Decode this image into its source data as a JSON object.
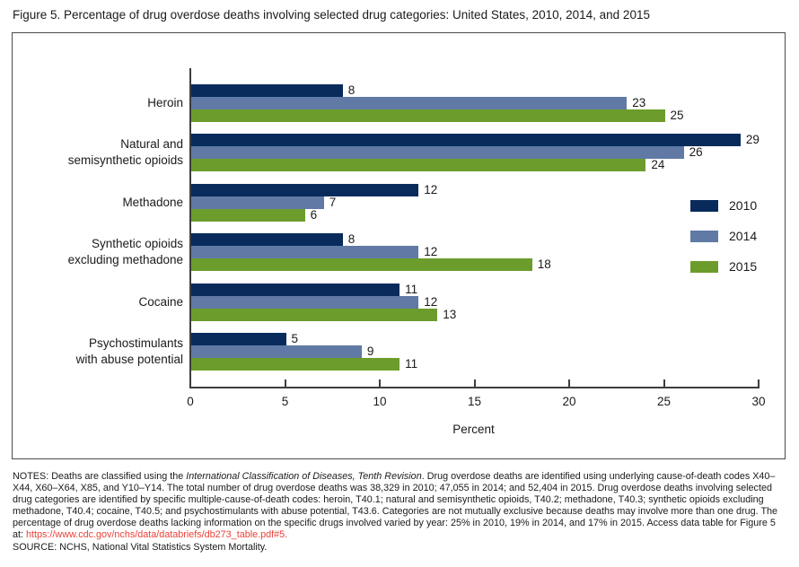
{
  "figure_title": "Figure 5. Percentage of drug overdose deaths involving selected drug categories: United States, 2010, 2014, and 2015",
  "chart_data": {
    "type": "bar",
    "orientation": "horizontal",
    "title": "Figure 5. Percentage of drug overdose deaths involving selected drug categories: United States, 2010, 2014, and 2015",
    "categories": [
      "Heroin",
      "Natural and semisynthetic opioids",
      "Methadone",
      "Synthetic opioids excluding methadone",
      "Cocaine",
      "Psychostimulants with abuse potential"
    ],
    "category_label_lines": [
      [
        "Heroin"
      ],
      [
        "Natural and",
        "semisynthetic opioids"
      ],
      [
        "Methadone"
      ],
      [
        "Synthetic opioids",
        "excluding methadone"
      ],
      [
        "Cocaine"
      ],
      [
        "Psychostimulants",
        "with abuse potential"
      ]
    ],
    "series": [
      {
        "name": "2010",
        "color": "#082b5c",
        "values": [
          8,
          29,
          12,
          8,
          11,
          5
        ]
      },
      {
        "name": "2014",
        "color": "#607aa5",
        "values": [
          23,
          26,
          7,
          12,
          12,
          9
        ]
      },
      {
        "name": "2015",
        "color": "#6c9d2c",
        "values": [
          25,
          24,
          6,
          18,
          13,
          11
        ]
      }
    ],
    "xlabel": "Percent",
    "xlim": [
      0,
      30
    ],
    "xticks": [
      0,
      5,
      10,
      15,
      20,
      25,
      30
    ],
    "grid": "off",
    "legend_position": "right"
  },
  "notes": {
    "prefix": "NOTES: Deaths are classified using the ",
    "italic": "International Classification of Diseases, Tenth Revision",
    "body": ". Drug overdose deaths are identified using underlying cause-of-death codes X40–X44, X60–X64, X85, and Y10–Y14. The total number of drug overdose deaths was 38,329 in 2010; 47,055 in 2014; and 52,404 in 2015. Drug overdose deaths involving selected drug categories are identified by specific multiple-cause-of-death codes: heroin, T40.1; natural and semisynthetic opioids, T40.2; methadone, T40.3; synthetic opioids excluding methadone, T40.4; cocaine, T40.5; and psychostimulants with abuse potential, T43.6. Categories are not mutually exclusive because deaths may involve more than one drug. The percentage of drug overdose deaths lacking information on the specific drugs involved varied by year: 25% in 2010, 19% in 2014, and 17% in 2015. Access data table for Figure 5 at: ",
    "link": "https://www.cdc.gov/nchs/data/databriefs/db273_table.pdf#5.",
    "source": "SOURCE: NCHS, National Vital Statistics System Mortality."
  },
  "colors": {
    "axis": "#3d3d3d",
    "frame_border": "#4a4a4a",
    "text": "#1a1a1a",
    "link_red": "#eb4137",
    "background": "#ffffff"
  }
}
